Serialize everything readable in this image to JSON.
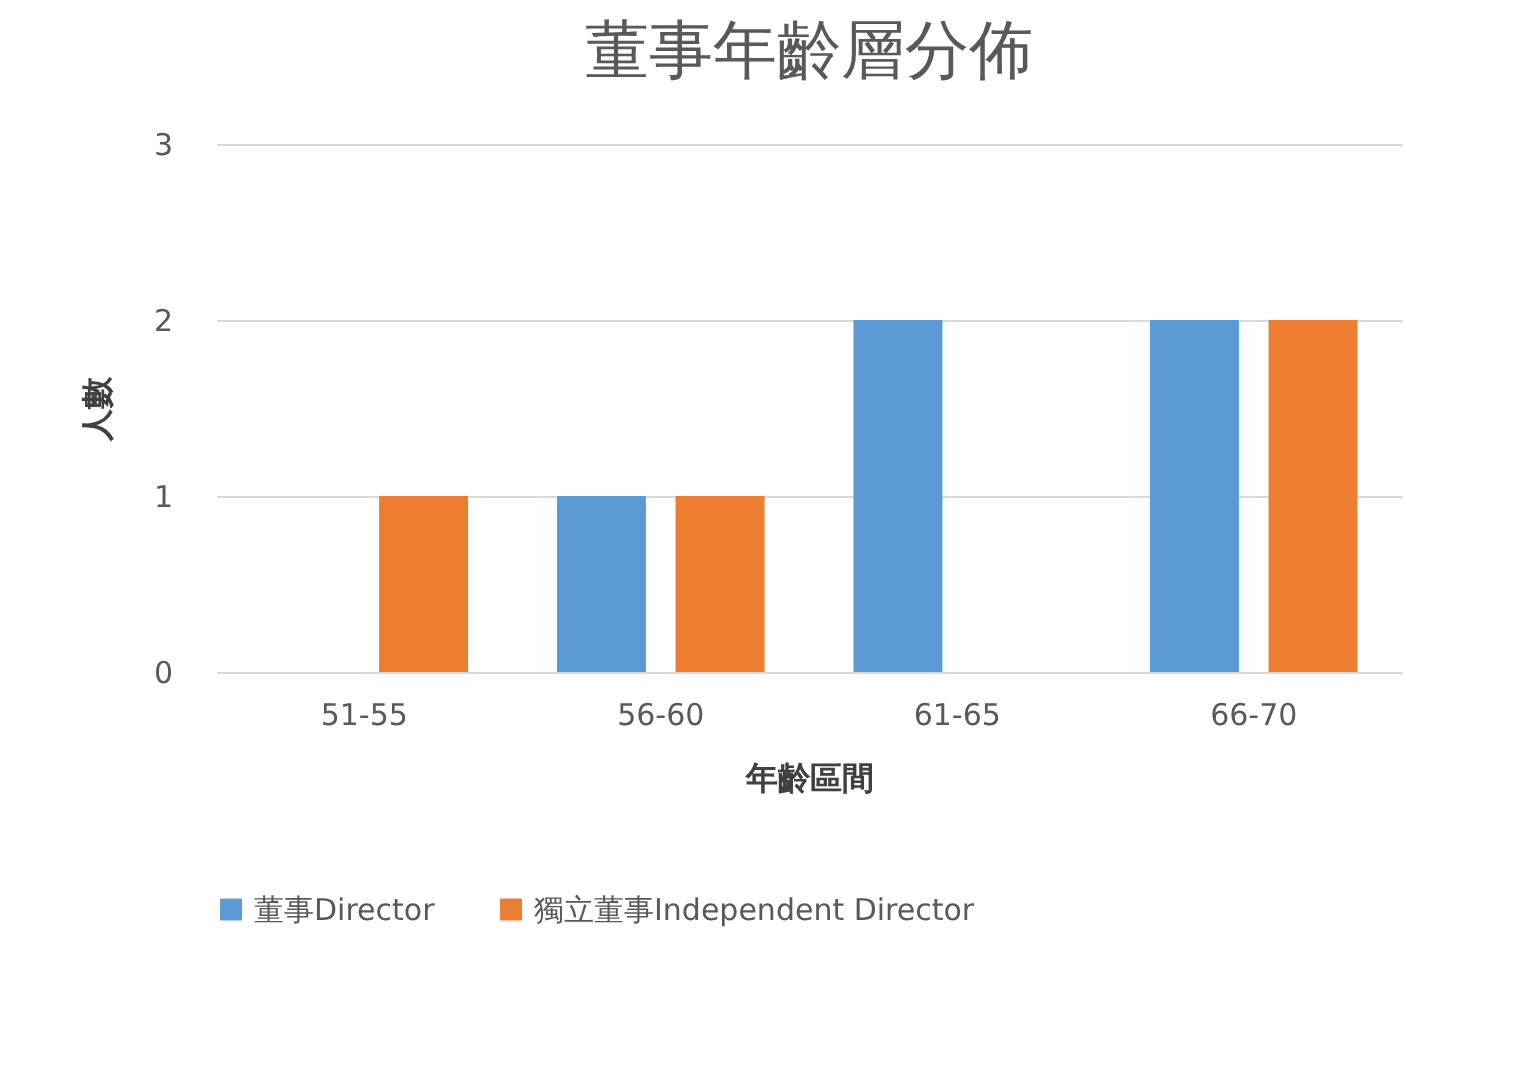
{
  "chart_data": {
    "type": "bar",
    "title": "董事年齡層分佈",
    "xlabel": "年齡區間",
    "ylabel": "人數",
    "categories": [
      "51-55",
      "56-60",
      "61-65",
      "66-70"
    ],
    "series": [
      {
        "name": "董事Director",
        "color": "#5b9bd5",
        "values": [
          0,
          1,
          2,
          2
        ]
      },
      {
        "name": "獨立董事Independent Director",
        "color": "#ed7d31",
        "values": [
          1,
          1,
          0,
          2
        ]
      }
    ],
    "ylim": [
      0,
      3
    ],
    "yticks": [
      0,
      1,
      2,
      3
    ],
    "grid": "y",
    "legend": "bottom"
  }
}
